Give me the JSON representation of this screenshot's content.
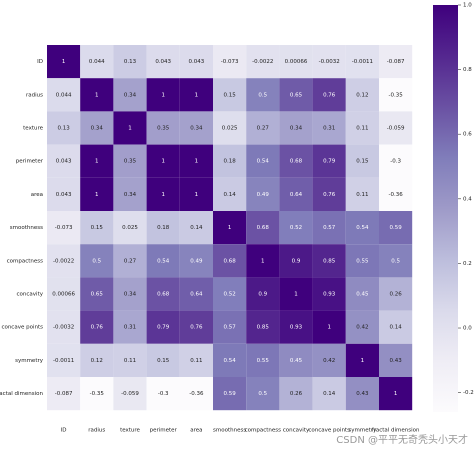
{
  "chart_data": {
    "type": "heatmap",
    "labels": [
      "ID",
      "radius",
      "texture",
      "perimeter",
      "area",
      "smoothness",
      "compactness",
      "concavity",
      "concave points",
      "symmetry",
      "fractal dimension"
    ],
    "matrix": [
      [
        1,
        0.044,
        0.13,
        0.043,
        0.043,
        -0.073,
        -0.0022,
        0.00066,
        -0.0032,
        -0.0011,
        -0.087
      ],
      [
        0.044,
        1,
        0.34,
        1,
        1,
        0.15,
        0.5,
        0.65,
        0.76,
        0.12,
        -0.35
      ],
      [
        0.13,
        0.34,
        1,
        0.35,
        0.34,
        0.025,
        0.27,
        0.34,
        0.31,
        0.11,
        -0.059
      ],
      [
        0.043,
        1,
        0.35,
        1,
        1,
        0.18,
        0.54,
        0.68,
        0.79,
        0.15,
        -0.3
      ],
      [
        0.043,
        1,
        0.34,
        1,
        1,
        0.14,
        0.49,
        0.64,
        0.76,
        0.11,
        -0.36
      ],
      [
        -0.073,
        0.15,
        0.025,
        0.18,
        0.14,
        1,
        0.68,
        0.52,
        0.57,
        0.54,
        0.59
      ],
      [
        -0.0022,
        0.5,
        0.27,
        0.54,
        0.49,
        0.68,
        1,
        0.9,
        0.85,
        0.55,
        0.5
      ],
      [
        0.00066,
        0.65,
        0.34,
        0.68,
        0.64,
        0.52,
        0.9,
        1,
        0.93,
        0.45,
        0.26
      ],
      [
        -0.0032,
        0.76,
        0.31,
        0.79,
        0.76,
        0.57,
        0.85,
        0.93,
        1,
        0.42,
        0.14
      ],
      [
        -0.0011,
        0.12,
        0.11,
        0.15,
        0.11,
        0.54,
        0.55,
        0.45,
        0.42,
        1,
        0.43
      ],
      [
        -0.087,
        -0.35,
        -0.059,
        -0.3,
        -0.36,
        0.59,
        0.5,
        0.26,
        0.14,
        0.43,
        1
      ]
    ],
    "clim": [
      -0.26,
      1
    ],
    "cticks": [
      {
        "value": 1,
        "label": "1.0"
      },
      0.8,
      0.6,
      0.4,
      0.2,
      {
        "value": 0,
        "label": "0.0"
      },
      -0.2
    ],
    "colormap": [
      "#fcfbfd",
      "#efedf5",
      "#dadaeb",
      "#bcbddc",
      "#9e9ac8",
      "#807dba",
      "#6a51a3",
      "#54278f",
      "#3f007d"
    ],
    "watermark": "CSDN @平平无奇秃头小天才"
  }
}
